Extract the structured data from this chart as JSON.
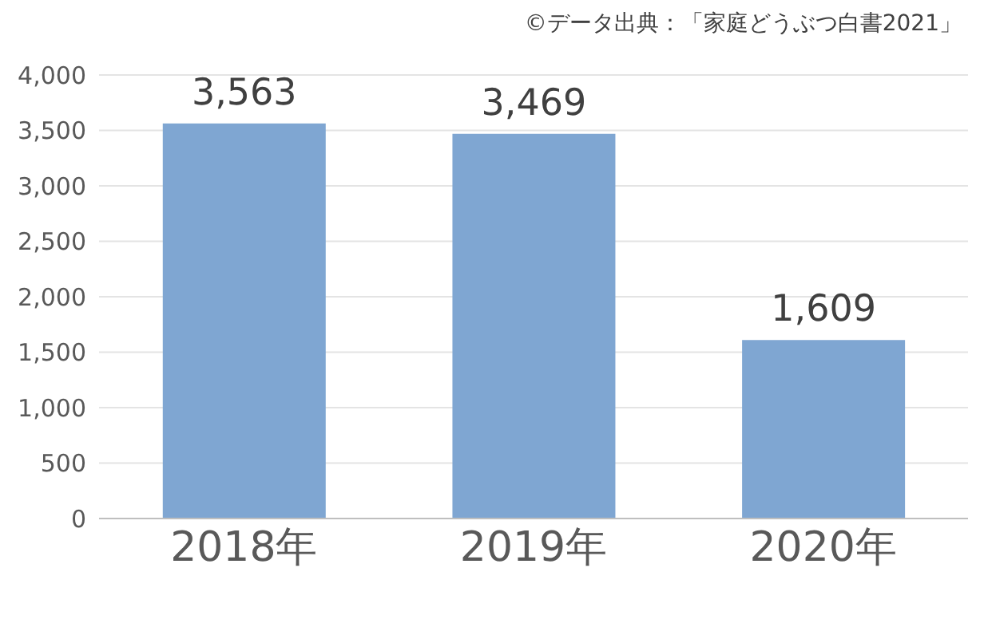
{
  "chart_data": {
    "type": "bar",
    "categories": [
      "2018年",
      "2019年",
      "2020年"
    ],
    "values": [
      3563,
      3469,
      1609
    ],
    "value_labels": [
      "3,563",
      "3,469",
      "1,609"
    ],
    "color": "#7fa6d2",
    "ylim": [
      0,
      4000
    ],
    "yticks": [
      0,
      500,
      {
        "value": 1000,
        "label": "1,000"
      },
      {
        "value": 1500,
        "label": "1,500"
      },
      {
        "value": 2000,
        "label": "2,000"
      },
      {
        "value": 2500,
        "label": "2,500"
      },
      {
        "value": 3000,
        "label": "3,000"
      },
      {
        "value": 3500,
        "label": "3,500"
      },
      {
        "value": 4000,
        "label": "4,000"
      }
    ],
    "grid": "y",
    "annotations": [
      "©データ出典：「家庭どうぶつ白書2021」"
    ]
  }
}
